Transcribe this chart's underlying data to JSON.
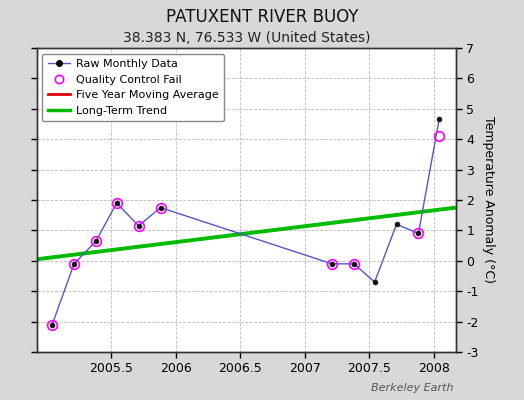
{
  "title": "PATUXENT RIVER BUOY",
  "subtitle": "38.383 N, 76.533 W (United States)",
  "ylabel_right": "Temperature Anomaly (°C)",
  "watermark": "Berkeley Earth",
  "xlim": [
    2004.92,
    2008.17
  ],
  "ylim": [
    -3,
    7
  ],
  "yticks": [
    -3,
    -2,
    -1,
    0,
    1,
    2,
    3,
    4,
    5,
    6,
    7
  ],
  "xticks": [
    2005.5,
    2006.0,
    2006.5,
    2007.0,
    2007.5,
    2008.0
  ],
  "xtick_labels": [
    "2005.5",
    "2006",
    "2006.5",
    "2007",
    "2007.5",
    "2008"
  ],
  "raw_x": [
    2005.04,
    2005.21,
    2005.38,
    2005.54,
    2005.71,
    2005.88,
    2007.21,
    2007.38,
    2007.54,
    2007.71,
    2007.88,
    2008.04
  ],
  "raw_y": [
    -2.1,
    -0.1,
    0.65,
    1.9,
    1.15,
    1.75,
    -0.1,
    -0.1,
    -0.7,
    1.2,
    0.9,
    4.65
  ],
  "qc_fail_x": [
    2005.04,
    2005.21,
    2005.38,
    2005.54,
    2005.71,
    2005.88,
    2007.21,
    2007.38,
    2007.88,
    2008.04
  ],
  "qc_fail_y": [
    -2.1,
    -0.1,
    0.65,
    1.9,
    1.15,
    1.75,
    -0.1,
    -0.1,
    0.9,
    4.1
  ],
  "trend_x": [
    2004.92,
    2008.17
  ],
  "trend_y": [
    0.05,
    1.75
  ],
  "background_color": "#d8d8d8",
  "plot_bg_color": "#ffffff",
  "raw_line_color": "#5555cc",
  "raw_marker_color": "#111111",
  "qc_marker_color": "#ff00ff",
  "moving_avg_color": "#dd0000",
  "trend_color": "#00bb00",
  "title_fontsize": 12,
  "subtitle_fontsize": 10,
  "axis_fontsize": 9,
  "watermark_fontsize": 8
}
